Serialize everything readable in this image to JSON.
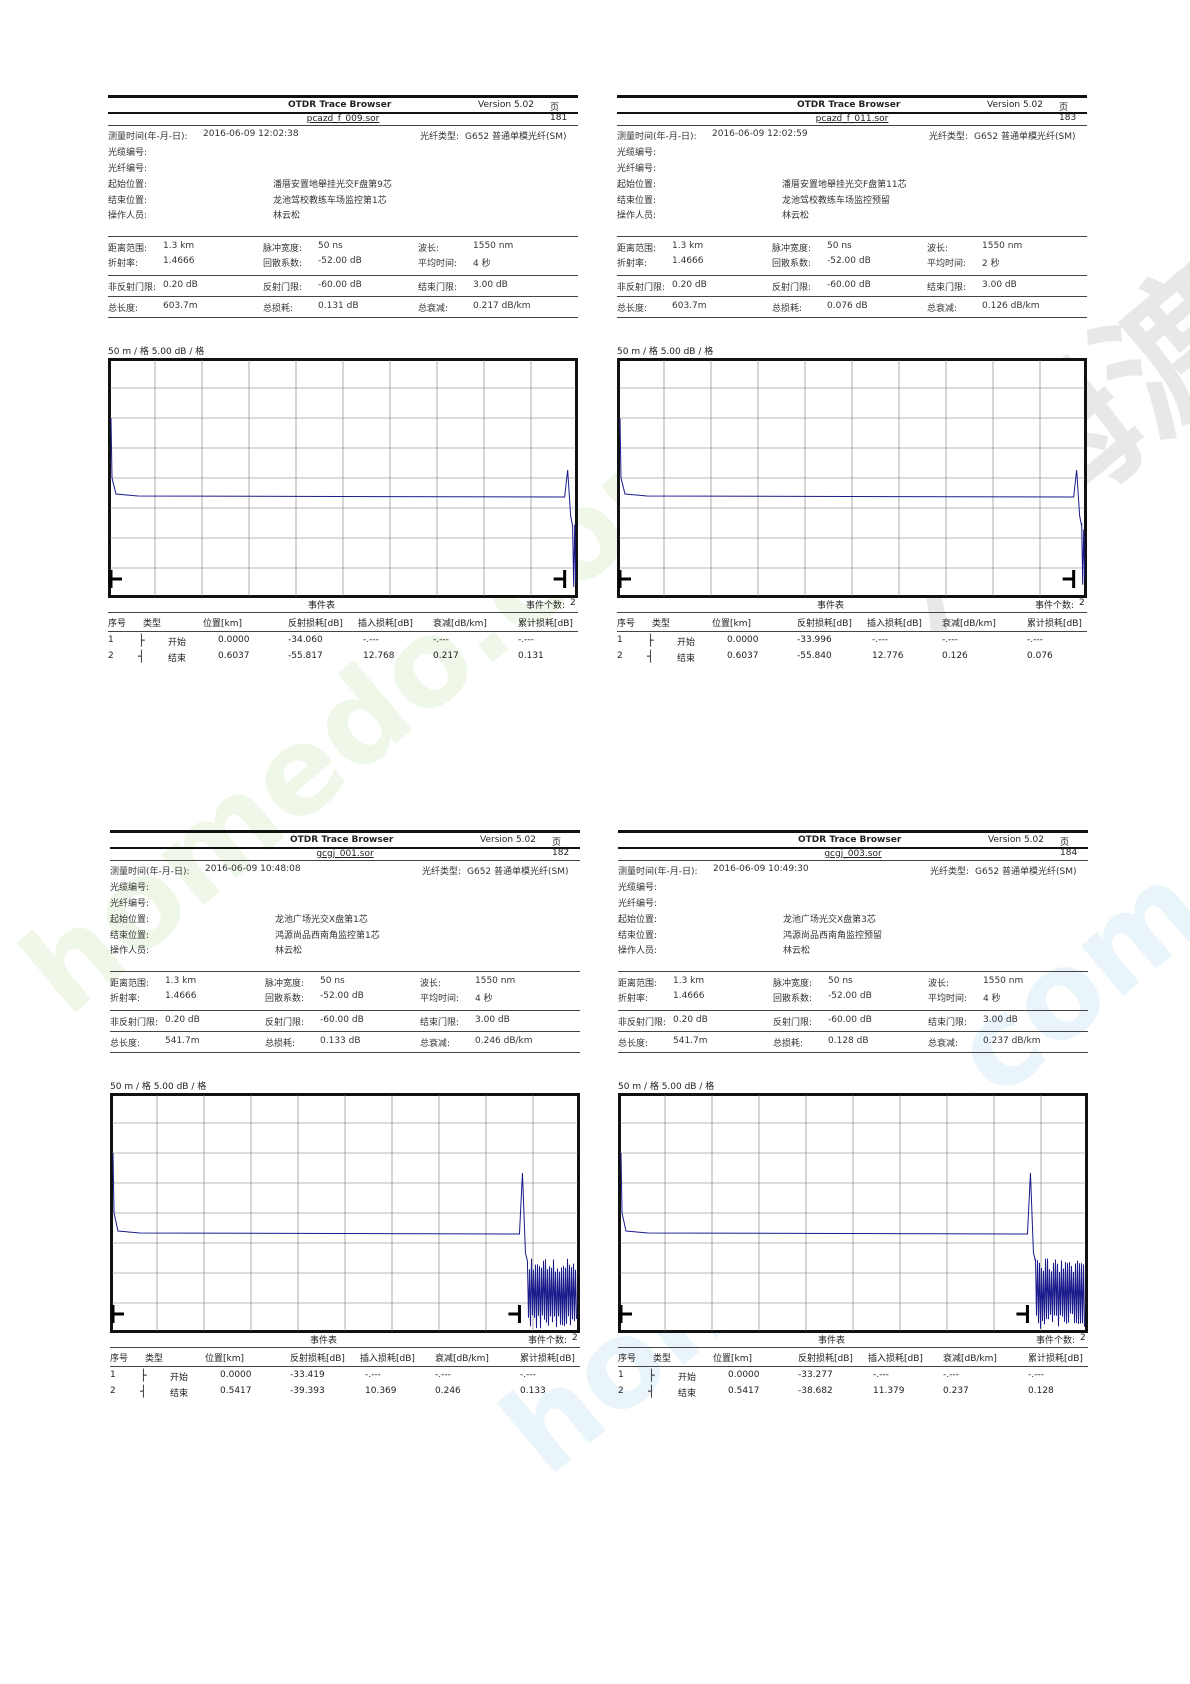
{
  "watermark": {
    "text_a": "homedo.com",
    "text_b": "河姆渡",
    "color_a": "#e6f3e0",
    "color_b": "#e0e0e0"
  },
  "labels": {
    "measure_time": "测量时间(年-月-日):",
    "fiber_type": "光纤类型:",
    "cable_no": "光缆编号:",
    "fiber_no": "光纤编号:",
    "start_pos": "起始位置:",
    "end_pos": "结束位置:",
    "operator": "操作人员:",
    "range": "距离范围:",
    "pulse": "脉冲宽度:",
    "wavelength": "波长:",
    "ior": "折射率:",
    "backscatter": "回散系数:",
    "avg_time": "平均时间:",
    "nonrefl": "非反射门限:",
    "refl": "反射门限:",
    "end_thresh": "结束门限:",
    "total_len": "总长度:",
    "total_loss": "总损耗:",
    "total_atten": "总衰减:",
    "event_table": "事件表",
    "event_count_label": "事件个数:",
    "col_no": "序号",
    "col_type": "类型",
    "col_pos": "位置[km]",
    "col_refl": "反射损耗[dB]",
    "col_ins": "插入损耗[dB]",
    "col_att": "衰减[dB/km]",
    "col_cum": "累计损耗[dB]"
  },
  "panels": [
    {
      "app_title": "OTDR Trace Browser",
      "version": "Version 5.02",
      "page": "页 181",
      "filename": "pcazd_f_009.sor",
      "measure_time": "2016-06-09  12:02:38",
      "fiber_type": "G652 普通单模光纤(SM)",
      "start_pos": "潘厝安置地舉挂光交F盘第9芯",
      "end_pos": "龙池驾校教练车场监控第1芯",
      "operator": "林云松",
      "range": "1.3 km",
      "pulse": "50 ns",
      "wavelength": "1550 nm",
      "ior": "1.4666",
      "backscatter": "-52.00 dB",
      "avg_time": "4 秒",
      "nonrefl": "0.20 dB",
      "refl": "-60.00 dB",
      "end_thresh": "3.00 dB",
      "total_len": "603.7m",
      "total_loss": "0.131 dB",
      "total_atten": "0.217 dB/km",
      "scale": "50 m / 格    5.00 dB / 格",
      "event_count": "2",
      "events": [
        {
          "no": "1",
          "type": "开始",
          "pos": "0.0000",
          "refl": "-34.060",
          "ins": "-.---",
          "att": "-.---",
          "cum": "-.---"
        },
        {
          "no": "2",
          "type": "结束",
          "pos": "0.6037",
          "refl": "-55.817",
          "ins": "12.768",
          "att": "0.217",
          "cum": "0.131"
        }
      ]
    },
    {
      "app_title": "OTDR Trace Browser",
      "version": "Version 5.02",
      "page": "页 183",
      "filename": "pcazd_f_011.sor",
      "measure_time": "2016-06-09  12:02:59",
      "fiber_type": "G652 普通单模光纤(SM)",
      "start_pos": "潘厝安置地舉挂光交F盘第11芯",
      "end_pos": "龙池驾校教练车场监控预留",
      "operator": "林云松",
      "range": "1.3 km",
      "pulse": "50 ns",
      "wavelength": "1550 nm",
      "ior": "1.4666",
      "backscatter": "-52.00 dB",
      "avg_time": "2 秒",
      "nonrefl": "0.20 dB",
      "refl": "-60.00 dB",
      "end_thresh": "3.00 dB",
      "total_len": "603.7m",
      "total_loss": "0.076 dB",
      "total_atten": "0.126 dB/km",
      "scale": "50 m / 格    5.00 dB / 格",
      "event_count": "2",
      "events": [
        {
          "no": "1",
          "type": "开始",
          "pos": "0.0000",
          "refl": "-33.996",
          "ins": "-.---",
          "att": "-.---",
          "cum": "-.---"
        },
        {
          "no": "2",
          "type": "结束",
          "pos": "0.6037",
          "refl": "-55.840",
          "ins": "12.776",
          "att": "0.126",
          "cum": "0.076"
        }
      ]
    },
    {
      "app_title": "OTDR Trace Browser",
      "version": "Version 5.02",
      "page": "页 182",
      "filename": "gcgj_001.sor",
      "measure_time": "2016-06-09  10:48:08",
      "fiber_type": "G652 普通单模光纤(SM)",
      "start_pos": "龙池广场光交X盘第1芯",
      "end_pos": "鸿源尚品西南角监控第1芯",
      "operator": "林云松",
      "range": "1.3 km",
      "pulse": "50 ns",
      "wavelength": "1550 nm",
      "ior": "1.4666",
      "backscatter": "-52.00 dB",
      "avg_time": "4 秒",
      "nonrefl": "0.20 dB",
      "refl": "-60.00 dB",
      "end_thresh": "3.00 dB",
      "total_len": "541.7m",
      "total_loss": "0.133 dB",
      "total_atten": "0.246 dB/km",
      "scale": "50 m / 格    5.00 dB / 格",
      "event_count": "2",
      "events": [
        {
          "no": "1",
          "type": "开始",
          "pos": "0.0000",
          "refl": "-33.419",
          "ins": "-.---",
          "att": "-.---",
          "cum": "-.---"
        },
        {
          "no": "2",
          "type": "结束",
          "pos": "0.5417",
          "refl": "-39.393",
          "ins": "10.369",
          "att": "0.246",
          "cum": "0.133"
        }
      ]
    },
    {
      "app_title": "OTDR Trace Browser",
      "version": "Version 5.02",
      "page": "页 184",
      "filename": "gcgj_003.sor",
      "measure_time": "2016-06-09  10:49:30",
      "fiber_type": "G652 普通单模光纤(SM)",
      "start_pos": "龙池广场光交X盘第3芯",
      "end_pos": "鸿源尚品西南角监控预留",
      "operator": "林云松",
      "range": "1.3 km",
      "pulse": "50 ns",
      "wavelength": "1550 nm",
      "ior": "1.4666",
      "backscatter": "-52.00 dB",
      "avg_time": "4 秒",
      "nonrefl": "0.20 dB",
      "refl": "-60.00 dB",
      "end_thresh": "3.00 dB",
      "total_len": "541.7m",
      "total_loss": "0.128 dB",
      "total_atten": "0.237 dB/km",
      "scale": "50 m / 格    5.00 dB / 格",
      "event_count": "2",
      "events": [
        {
          "no": "1",
          "type": "开始",
          "pos": "0.0000",
          "refl": "-33.277",
          "ins": "-.---",
          "att": "-.---",
          "cum": "-.---"
        },
        {
          "no": "2",
          "type": "结束",
          "pos": "0.5417",
          "refl": "-38.682",
          "ins": "11.379",
          "att": "0.237",
          "cum": "0.128"
        }
      ]
    }
  ]
}
